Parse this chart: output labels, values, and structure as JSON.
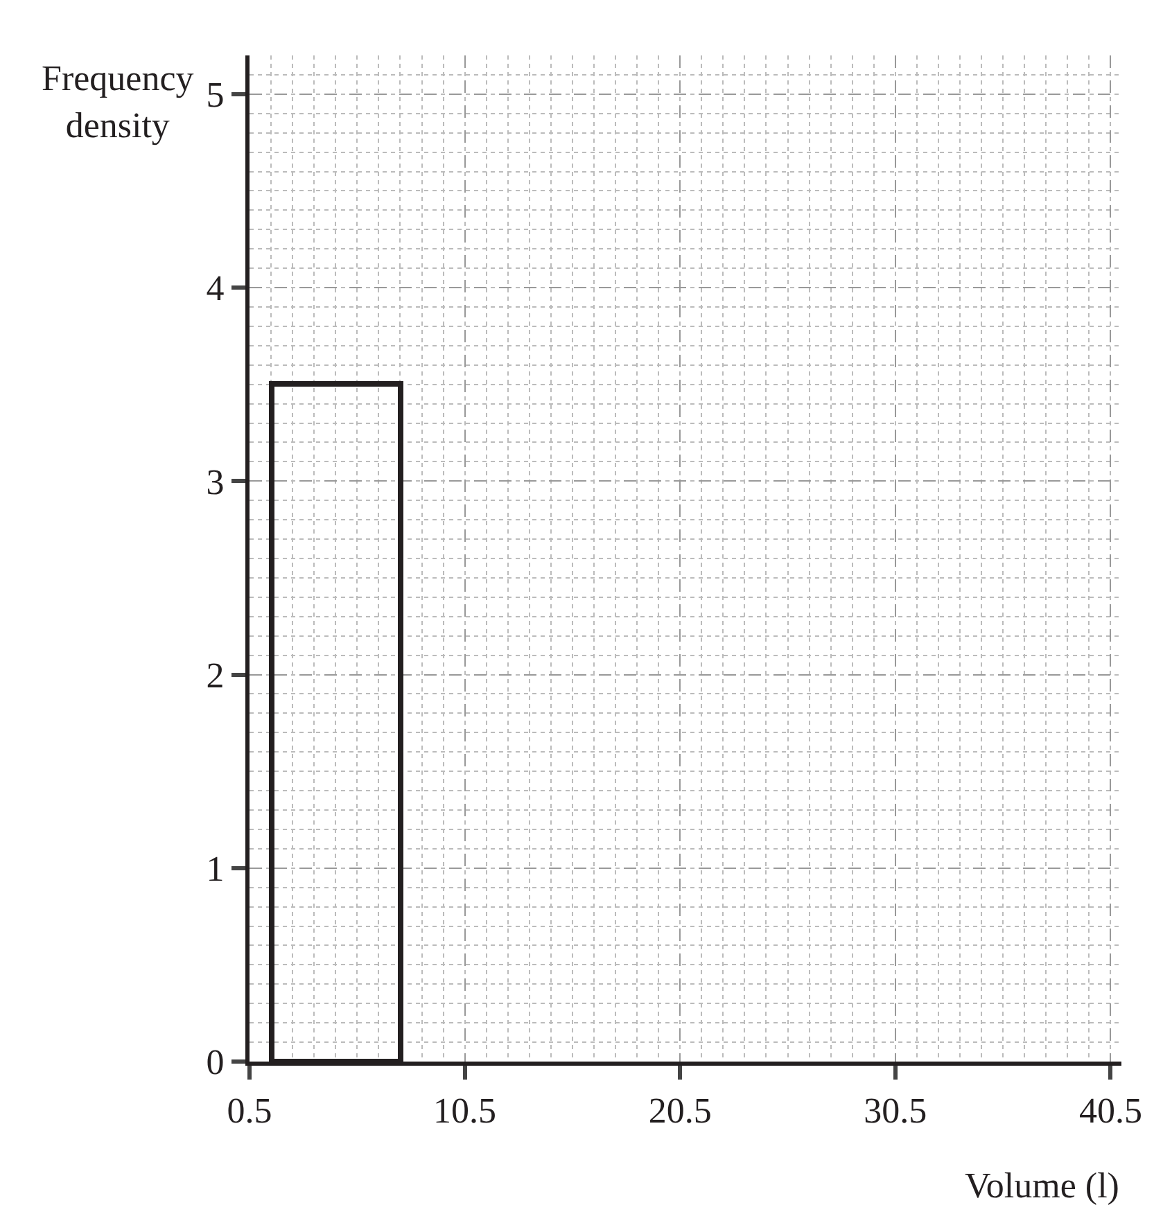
{
  "chart_data": {
    "type": "histogram",
    "xlabel": "Volume (l)",
    "ylabel": "Frequency density",
    "bins": [
      1.5,
      7.5
    ],
    "values": [
      3.5
    ],
    "color": "#231f20",
    "xlim": [
      0.5,
      41
    ],
    "ylim": [
      0,
      5.2
    ],
    "xticks": [
      0.5,
      10.5,
      20.5,
      30.5,
      40.5
    ],
    "yticks": [
      0,
      1,
      2,
      3,
      4,
      5
    ],
    "grid": true
  }
}
